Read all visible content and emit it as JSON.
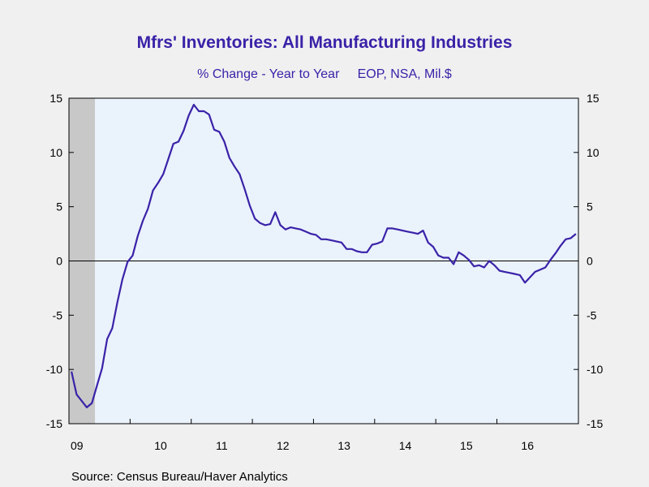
{
  "chart_data": {
    "type": "line",
    "title": "Mfrs' Inventories: All Manufacturing Industries",
    "subtitle": "% Change - Year to Year     EOP, NSA, Mil.$",
    "source": "Source:  Census Bureau/Haver Analytics",
    "xlabel": "",
    "ylabel": "",
    "ylim": [
      -15,
      15
    ],
    "y_ticks": [
      15,
      10,
      5,
      0,
      -5,
      -10,
      -15
    ],
    "y_tick_labels_left": [
      "15",
      "10",
      "5",
      "0",
      "-5",
      "-10",
      "-15"
    ],
    "y_tick_labels_right": [
      "15",
      "10",
      "5",
      "0",
      "-5",
      "-10",
      "-15"
    ],
    "x_labels": [
      "09",
      "10",
      "11",
      "12",
      "13",
      "14",
      "15",
      "16"
    ],
    "x_start": "2009-01",
    "grid": false,
    "recession_shading": {
      "start": "2009-01",
      "end": "2009-06"
    },
    "colors": {
      "line": "#3a22a8",
      "title": "#3a22a8",
      "plot_bg": "#eaf2fc",
      "shade": "#c8c8c8"
    },
    "series": [
      {
        "values": [
          -10.2,
          -12.3,
          -12.9,
          -13.5,
          -13.1,
          -11.5,
          -9.9,
          -7.2,
          -6.2,
          -3.8,
          -1.7,
          -0.1,
          0.5,
          2.3,
          3.7,
          4.8,
          6.5,
          7.2,
          8.0,
          9.4,
          10.8,
          11.0,
          12.0,
          13.4,
          14.4,
          13.8,
          13.8,
          13.5,
          12.1,
          11.9,
          11.0,
          9.5,
          8.7,
          8.0,
          6.6,
          5.1,
          3.9,
          3.5,
          3.3,
          3.4,
          4.5,
          3.3,
          2.9,
          3.1,
          3.0,
          2.9,
          2.7,
          2.5,
          2.4,
          2.0,
          2.0,
          1.9,
          1.8,
          1.7,
          1.1,
          1.1,
          0.9,
          0.8,
          0.8,
          1.5,
          1.6,
          1.8,
          3.0,
          3.0,
          2.9,
          2.8,
          2.7,
          2.6,
          2.5,
          2.8,
          1.7,
          1.3,
          0.5,
          0.3,
          0.3,
          -0.3,
          0.8,
          0.5,
          0.1,
          -0.5,
          -0.4,
          -0.6,
          0.0,
          -0.4,
          -0.9,
          -1.0,
          -1.1,
          -1.2,
          -1.3,
          -2.0,
          -1.5,
          -1.0,
          -0.8,
          -0.6,
          0.1,
          0.7,
          1.4,
          2.0,
          2.1,
          2.5
        ]
      }
    ]
  }
}
